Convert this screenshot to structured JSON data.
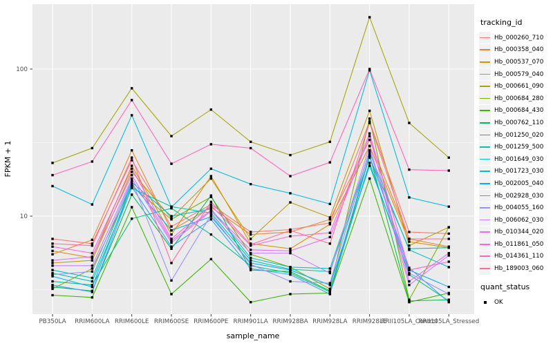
{
  "figure": {
    "background": "#FFFFFF",
    "panel_background": "#EBEBEB",
    "grid_color": "#FFFFFF",
    "tick_color": "#333333",
    "tick_label_color": "#4D4D4D",
    "legend_key_background": "#F2F2F2",
    "point_color": "#000000"
  },
  "chart_data": {
    "type": "line",
    "title": "",
    "xlabel": "sample_name",
    "ylabel": "FPKM + 1",
    "y_scale": "log10",
    "y_ticks": [
      10,
      100
    ],
    "y_minor_ticks": [
      3.162,
      31.62
    ],
    "ylim": [
      2.15,
      280
    ],
    "grid": "on",
    "legend_position": "right",
    "legend_title": "tracking_id",
    "legend2_title": "quant_status",
    "legend2_items": [
      {
        "label": "OK",
        "marker": "black-square"
      }
    ],
    "categories": [
      "PB350LA",
      "RRIM600LA",
      "RRIM600LE",
      "RRIM600SE",
      "RRIM600PE",
      "RRIM901LA",
      "RRIM928BA",
      "RRIM928LA",
      "RRIM928LE",
      "RRII105LA_Control",
      "RRII105LA_Stressed"
    ],
    "series": [
      {
        "name": "Hb_000260_710",
        "color": "#F8766D",
        "values": [
          7.0,
          6.5,
          24,
          8.5,
          12.0,
          7.8,
          8.1,
          9.0,
          44,
          7.8,
          7.6
        ]
      },
      {
        "name": "Hb_000358_040",
        "color": "#EA8331",
        "values": [
          5.5,
          6.9,
          28,
          8.0,
          11.5,
          7.5,
          7.8,
          9.5,
          33,
          7.0,
          6.2
        ]
      },
      {
        "name": "Hb_000537_070",
        "color": "#D89000",
        "values": [
          5.8,
          5.2,
          22,
          7.5,
          18.7,
          6.5,
          6.0,
          8.8,
          30,
          6.7,
          6.1
        ]
      },
      {
        "name": "Hb_000579_040",
        "color": "#C09B00",
        "values": [
          4.8,
          5.0,
          20,
          9.7,
          18.0,
          7.0,
          12.4,
          9.8,
          52,
          6.3,
          8.4
        ]
      },
      {
        "name": "Hb_000661_090",
        "color": "#A3A500",
        "values": [
          23,
          29,
          74,
          35,
          53,
          32,
          26,
          32,
          225,
          43,
          25
        ]
      },
      {
        "name": "Hb_000684_280",
        "color": "#7CAE00",
        "values": [
          3.2,
          4.4,
          16,
          9.5,
          13.5,
          5.5,
          4.5,
          3.2,
          46,
          2.7,
          8.4
        ]
      },
      {
        "name": "Hb_000684_430",
        "color": "#39B600",
        "values": [
          2.9,
          2.8,
          11.5,
          2.95,
          5.1,
          2.6,
          2.95,
          3.0,
          18,
          2.6,
          3.0
        ]
      },
      {
        "name": "Hb_000762_110",
        "color": "#00BB4E",
        "values": [
          3.3,
          3.1,
          14,
          6.0,
          13.8,
          4.3,
          4.2,
          3.1,
          26,
          2.65,
          2.7
        ]
      },
      {
        "name": "Hb_001250_020",
        "color": "#00C087",
        "values": [
          3.6,
          3.4,
          9.6,
          11.3,
          7.5,
          4.6,
          4.1,
          3.05,
          23,
          4.0,
          2.65
        ]
      },
      {
        "name": "Hb_001259_500",
        "color": "#00C1AB",
        "values": [
          4.1,
          3.6,
          15.5,
          11.6,
          10.5,
          5.0,
          4.35,
          4.2,
          25,
          6.0,
          6.1
        ]
      },
      {
        "name": "Hb_001649_030",
        "color": "#00BFC4",
        "values": [
          4.3,
          3.8,
          17,
          10.0,
          11.2,
          5.2,
          4.5,
          4.4,
          27,
          5.9,
          4.5
        ]
      },
      {
        "name": "Hb_001723_030",
        "color": "#00BAE0",
        "values": [
          16,
          12,
          48.5,
          11.5,
          21,
          16.5,
          14.3,
          12.1,
          98,
          13.4,
          11.6
        ]
      },
      {
        "name": "Hb_002005_040",
        "color": "#00B0F6",
        "values": [
          3.9,
          3.3,
          16.5,
          8.0,
          9.9,
          4.8,
          4.3,
          3.4,
          22,
          4.3,
          3.3
        ]
      },
      {
        "name": "Hb_002928_030",
        "color": "#35A2FF",
        "values": [
          3.4,
          3.05,
          15.8,
          6.2,
          9.5,
          4.4,
          4.0,
          2.95,
          25.5,
          4.45,
          2.6
        ]
      },
      {
        "name": "Hb_004055_160",
        "color": "#9590FF",
        "values": [
          4.0,
          4.2,
          17.5,
          3.65,
          10.2,
          4.7,
          3.6,
          3.5,
          28,
          4.1,
          2.95
        ]
      },
      {
        "name": "Hb_006062_030",
        "color": "#C77CFF",
        "values": [
          4.6,
          4.6,
          18,
          6.6,
          10.8,
          5.6,
          5.6,
          4.1,
          30,
          3.4,
          5.4
        ]
      },
      {
        "name": "Hb_010344_020",
        "color": "#E76BF3",
        "values": [
          5.0,
          5.3,
          19,
          6.8,
          11.0,
          5.9,
          5.8,
          7.2,
          35,
          3.6,
          5.6
        ]
      },
      {
        "name": "Hb_011861_050",
        "color": "#FA62DB",
        "values": [
          6.2,
          5.6,
          21,
          7.0,
          11.8,
          6.3,
          7.3,
          7.7,
          36.5,
          4.3,
          4.9
        ]
      },
      {
        "name": "Hb_014361_110",
        "color": "#FF62BC",
        "values": [
          19,
          23.5,
          61.5,
          22.7,
          30.8,
          29,
          18.7,
          23.2,
          100,
          20.7,
          20.4
        ]
      },
      {
        "name": "Hb_189003_060",
        "color": "#FF6A98",
        "values": [
          6.5,
          6.3,
          25,
          4.8,
          12.5,
          6.4,
          8.0,
          6.5,
          43,
          7.0,
          7.0
        ]
      }
    ]
  }
}
